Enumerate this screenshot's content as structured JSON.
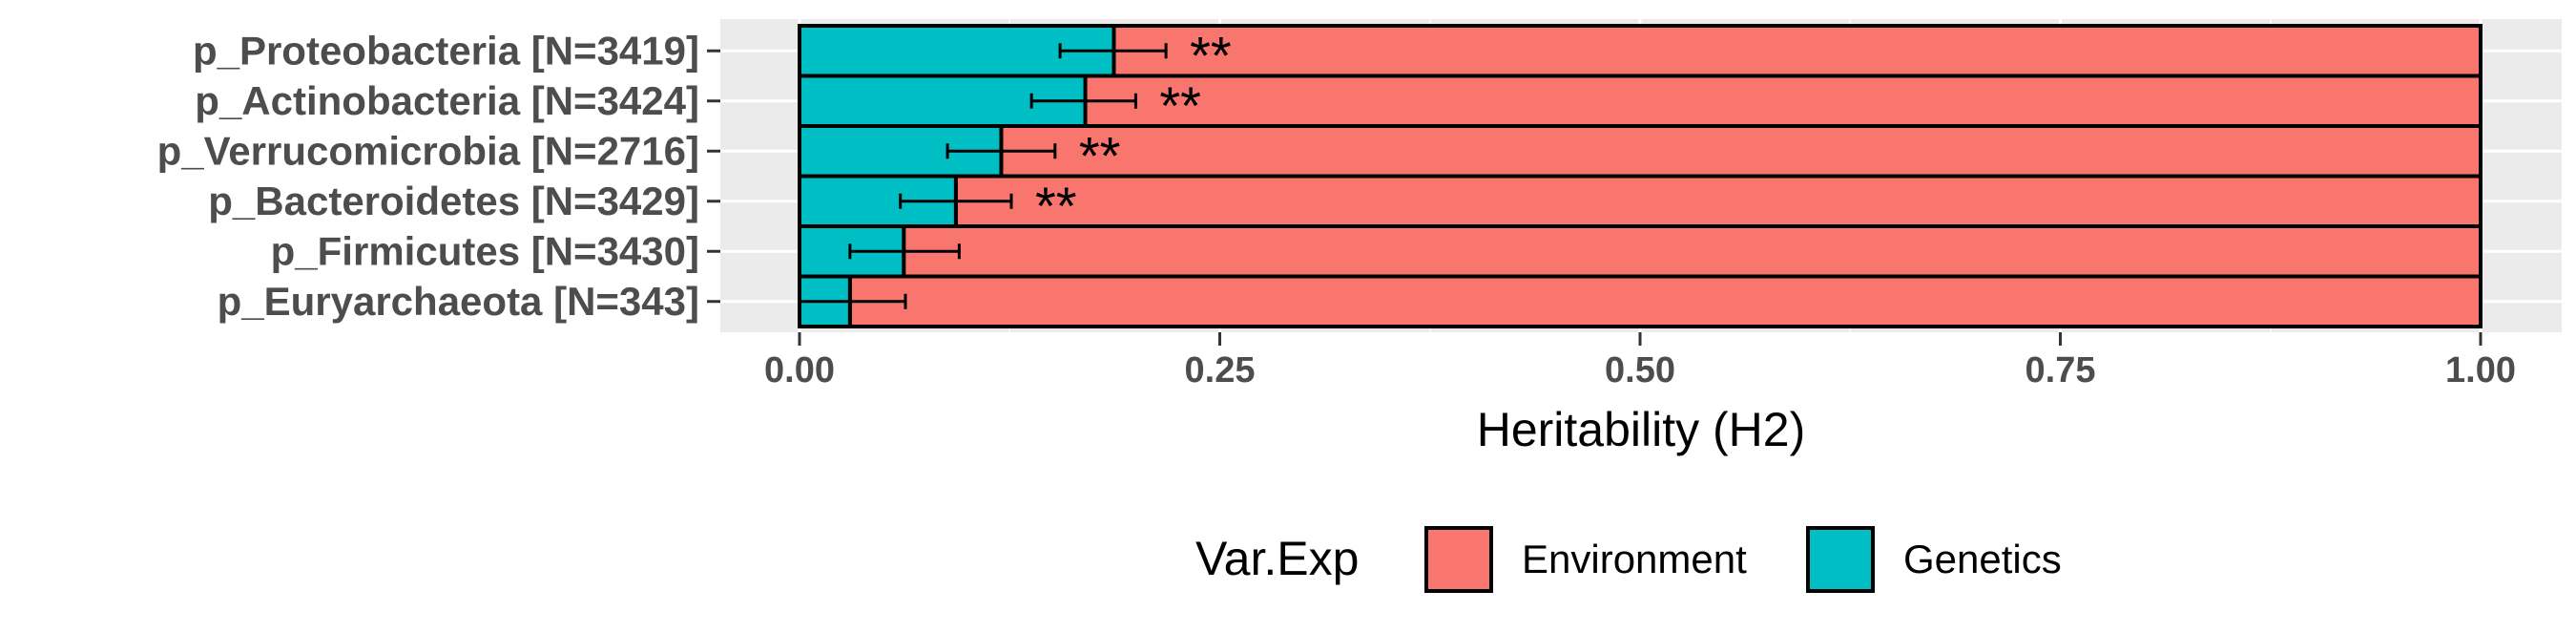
{
  "chart_data": {
    "type": "bar",
    "orientation": "horizontal",
    "stacked": true,
    "categories": [
      "p_Proteobacteria [N=3419]",
      "p_Actinobacteria [N=3424]",
      "p_Verrucomicrobia [N=2716]",
      "p_Bacteroidetes [N=3429]",
      "p_Firmicutes [N=3430]",
      "p_Euryarchaeota [N=343]"
    ],
    "series": [
      {
        "name": "Genetics",
        "color": "#00BFC4",
        "values": [
          0.187,
          0.17,
          0.12,
          0.093,
          0.062,
          0.03
        ],
        "error_low": [
          0.155,
          0.138,
          0.088,
          0.06,
          0.03,
          0.0
        ],
        "error_high": [
          0.218,
          0.2,
          0.152,
          0.126,
          0.095,
          0.063
        ]
      },
      {
        "name": "Environment",
        "color": "#F8766D",
        "values": [
          0.813,
          0.83,
          0.88,
          0.907,
          0.938,
          0.97
        ]
      }
    ],
    "significance": [
      "**",
      "**",
      "**",
      "**",
      "",
      ""
    ],
    "xlabel": "Heritability (H2)",
    "xlim": [
      0,
      1
    ],
    "xticks": [
      "0.00",
      "0.25",
      "0.50",
      "0.75",
      "1.00"
    ],
    "xtick_values": [
      0,
      0.25,
      0.5,
      0.75,
      1.0
    ],
    "grid": true,
    "panel_background": "#EBEBEB",
    "legend": {
      "title": "Var.Exp",
      "position": "bottom",
      "items": [
        {
          "label": "Environment",
          "color": "#F8766D"
        },
        {
          "label": "Genetics",
          "color": "#00BFC4"
        }
      ]
    }
  }
}
